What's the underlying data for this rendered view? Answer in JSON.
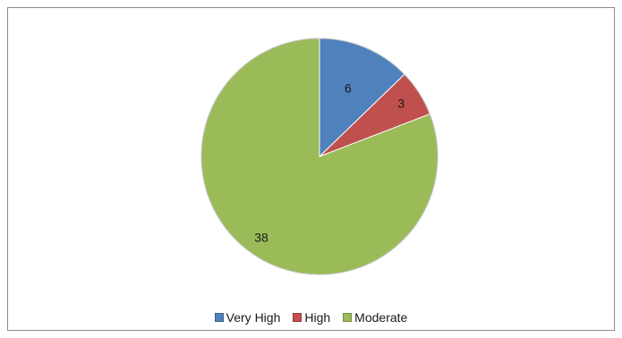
{
  "chart_data": {
    "type": "pie",
    "title": "",
    "categories": [
      "Very High",
      "High",
      "Moderate"
    ],
    "values": [
      6,
      3,
      38
    ],
    "colors": [
      "#4f81bd",
      "#c0504d",
      "#9bbb59"
    ],
    "legend_position": "bottom",
    "data_labels": [
      "6",
      "3",
      "38"
    ]
  },
  "legend": {
    "items": [
      {
        "label": "Very High",
        "color": "#4f81bd"
      },
      {
        "label": "High",
        "color": "#c0504d"
      },
      {
        "label": "Moderate",
        "color": "#9bbb59"
      }
    ]
  }
}
